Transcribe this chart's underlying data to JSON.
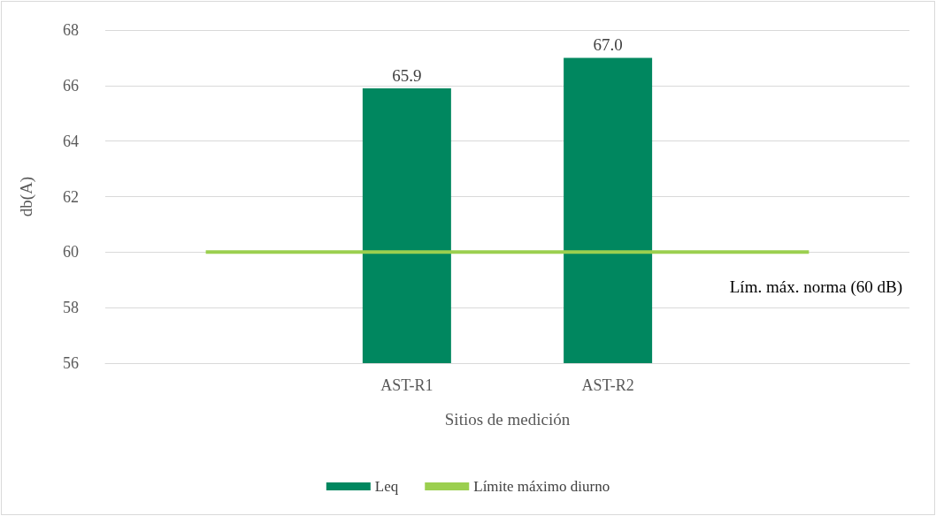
{
  "chart_data": {
    "type": "bar",
    "xlabel": "Sitios de medición",
    "ylabel": "db(A)",
    "categories": [
      null,
      "AST-R1",
      "AST-R2",
      null
    ],
    "series": [
      {
        "name": "Leq",
        "color": "#00875f",
        "values": [
          null,
          65.9,
          67.0,
          null
        ],
        "value_labels": [
          null,
          "65.9",
          "67.0",
          null
        ]
      },
      {
        "name": "Límite máximo diurno",
        "type": "line",
        "color": "#9bcf4f",
        "values": [
          60,
          60,
          60,
          60
        ],
        "marker": "none"
      }
    ],
    "ylim": [
      56,
      68
    ],
    "yticks": [
      56,
      58,
      60,
      62,
      64,
      66,
      68
    ],
    "grid": "y",
    "legend": "bottom",
    "annotations": [
      "Lím. máx. norma (60 dB)"
    ]
  }
}
